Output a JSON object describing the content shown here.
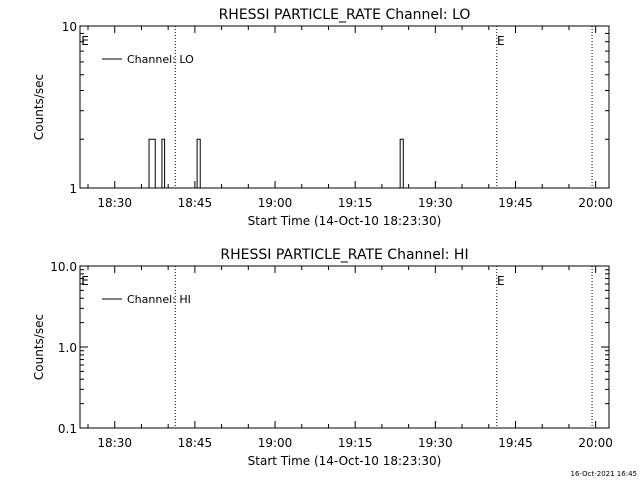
{
  "footer": {
    "timestamp": "16-Oct-2021 16:45"
  },
  "chart_data": [
    {
      "type": "line",
      "title": "RHESSI PARTICLE_RATE Channel: LO",
      "xlabel": "Start Time (14-Oct-10 18:23:30)",
      "ylabel": "Counts/sec",
      "yscale": "log",
      "ylim": [
        1,
        10
      ],
      "xlim": [
        "18:23:30",
        "20:02:30"
      ],
      "x_ticks": [
        "18:30",
        "18:45",
        "19:00",
        "19:15",
        "19:30",
        "19:45",
        "20:00"
      ],
      "y_ticks": [
        "1",
        "10"
      ],
      "legend": {
        "position": "top-left",
        "entries": [
          "Channel: LO"
        ]
      },
      "markers": [
        {
          "label": "E",
          "time": "18:23:30",
          "style": "text"
        },
        {
          "time": "18:41:20",
          "style": "dotted"
        },
        {
          "label": "E",
          "time": "19:41:30",
          "style": "dotted"
        },
        {
          "time": "19:59:20",
          "style": "dotted"
        }
      ],
      "series": [
        {
          "name": "Channel: LO",
          "x": [
            "18:36:00",
            "18:36:00",
            "18:36:25",
            "18:36:25",
            "18:37:35",
            "18:37:35",
            "18:38:25",
            "18:38:25",
            "18:38:50",
            "18:38:50",
            "18:39:20",
            "18:39:20",
            "18:39:45",
            "18:39:45",
            "18:45:00",
            "18:45:00",
            "18:45:25",
            "18:45:25",
            "18:46:00",
            "18:46:00",
            "19:23:00",
            "19:23:00",
            "19:23:25",
            "19:23:25",
            "19:24:00",
            "19:24:00"
          ],
          "y": [
            1,
            1,
            1,
            2,
            2,
            1,
            1,
            1,
            1,
            2,
            2,
            1,
            1,
            1,
            1,
            1,
            1,
            2,
            2,
            1,
            1,
            1,
            1,
            2,
            2,
            1
          ]
        }
      ]
    },
    {
      "type": "line",
      "title": "RHESSI PARTICLE_RATE Channel: HI",
      "xlabel": "Start Time (14-Oct-10 18:23:30)",
      "ylabel": "Counts/sec",
      "yscale": "log",
      "ylim": [
        0.1,
        10
      ],
      "xlim": [
        "18:23:30",
        "20:02:30"
      ],
      "x_ticks": [
        "18:30",
        "18:45",
        "19:00",
        "19:15",
        "19:30",
        "19:45",
        "20:00"
      ],
      "y_ticks": [
        "0.1",
        "1.0",
        "10.0"
      ],
      "legend": {
        "position": "top-left",
        "entries": [
          "Channel: HI"
        ]
      },
      "markers": [
        {
          "label": "E",
          "time": "18:23:30",
          "style": "text"
        },
        {
          "time": "18:41:20",
          "style": "dotted"
        },
        {
          "label": "E",
          "time": "19:41:30",
          "style": "dotted"
        },
        {
          "time": "19:59:20",
          "style": "dotted"
        }
      ],
      "series": [
        {
          "name": "Channel: HI",
          "x": [],
          "y": []
        }
      ]
    }
  ]
}
